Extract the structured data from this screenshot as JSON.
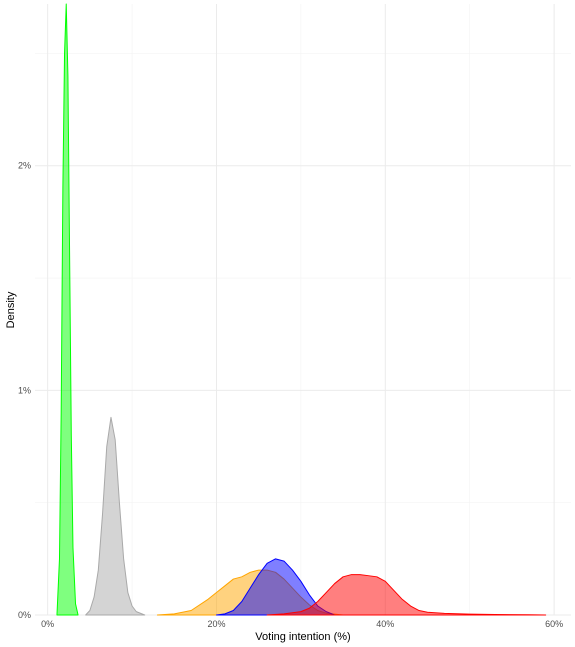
{
  "chart_data": {
    "type": "area",
    "xlabel": "Voting intention (%)",
    "ylabel": "Density",
    "xlim": [
      -1.5,
      62
    ],
    "ylim": [
      0,
      2.72
    ],
    "x_ticks": [
      0,
      20,
      40,
      60
    ],
    "x_tick_labels": [
      "0%",
      "20%",
      "40%",
      "60%"
    ],
    "y_ticks": [
      0,
      1,
      2
    ],
    "y_tick_labels": [
      "0%",
      "1%",
      "2%"
    ],
    "grid": true,
    "legend": "none",
    "series": [
      {
        "color": "#ffa500",
        "points": [
          [
            13,
            0
          ],
          [
            15,
            0.005
          ],
          [
            17,
            0.02
          ],
          [
            19,
            0.07
          ],
          [
            20,
            0.1
          ],
          [
            21,
            0.13
          ],
          [
            22,
            0.16
          ],
          [
            23,
            0.17
          ],
          [
            24,
            0.19
          ],
          [
            25,
            0.2
          ],
          [
            26,
            0.2
          ],
          [
            27,
            0.19
          ],
          [
            28,
            0.16
          ],
          [
            29,
            0.12
          ],
          [
            30,
            0.08
          ],
          [
            31,
            0.045
          ],
          [
            32,
            0.02
          ],
          [
            33,
            0.008
          ],
          [
            35,
            0
          ]
        ]
      },
      {
        "color": "#0000ff",
        "points": [
          [
            20,
            0
          ],
          [
            21,
            0.005
          ],
          [
            22,
            0.02
          ],
          [
            23,
            0.06
          ],
          [
            24,
            0.12
          ],
          [
            25,
            0.18
          ],
          [
            26,
            0.23
          ],
          [
            27,
            0.25
          ],
          [
            28,
            0.24
          ],
          [
            29,
            0.2
          ],
          [
            30,
            0.15
          ],
          [
            31,
            0.09
          ],
          [
            32,
            0.04
          ],
          [
            33,
            0.015
          ],
          [
            34,
            0
          ]
        ]
      },
      {
        "color": "#ff0000",
        "points": [
          [
            26,
            0
          ],
          [
            28,
            0.005
          ],
          [
            30,
            0.015
          ],
          [
            31,
            0.03
          ],
          [
            32,
            0.06
          ],
          [
            33,
            0.1
          ],
          [
            34,
            0.14
          ],
          [
            35,
            0.17
          ],
          [
            36,
            0.18
          ],
          [
            37,
            0.18
          ],
          [
            38,
            0.175
          ],
          [
            39,
            0.17
          ],
          [
            40,
            0.15
          ],
          [
            41,
            0.11
          ],
          [
            42,
            0.07
          ],
          [
            43,
            0.04
          ],
          [
            44,
            0.02
          ],
          [
            45,
            0.012
          ],
          [
            47,
            0.007
          ],
          [
            50,
            0.004
          ],
          [
            53,
            0.002
          ],
          [
            57,
            0.001
          ],
          [
            59,
            0
          ]
        ]
      },
      {
        "color": "#00ff00",
        "points": [
          [
            1.1,
            0
          ],
          [
            1.4,
            0.25
          ],
          [
            1.6,
            0.9
          ],
          [
            1.8,
            1.9
          ],
          [
            2,
            2.5
          ],
          [
            2.2,
            2.72
          ],
          [
            2.4,
            2.4
          ],
          [
            2.6,
            1.6
          ],
          [
            2.8,
            0.8
          ],
          [
            3.0,
            0.3
          ],
          [
            3.3,
            0.05
          ],
          [
            3.6,
            0
          ]
        ]
      },
      {
        "color": "#a9a9a9",
        "points": [
          [
            4.5,
            0
          ],
          [
            5,
            0.02
          ],
          [
            5.5,
            0.08
          ],
          [
            6,
            0.2
          ],
          [
            6.5,
            0.45
          ],
          [
            7,
            0.75
          ],
          [
            7.5,
            0.88
          ],
          [
            8,
            0.78
          ],
          [
            8.5,
            0.5
          ],
          [
            9,
            0.25
          ],
          [
            9.5,
            0.1
          ],
          [
            10,
            0.04
          ],
          [
            10.5,
            0.015
          ],
          [
            11.5,
            0
          ]
        ]
      }
    ]
  }
}
